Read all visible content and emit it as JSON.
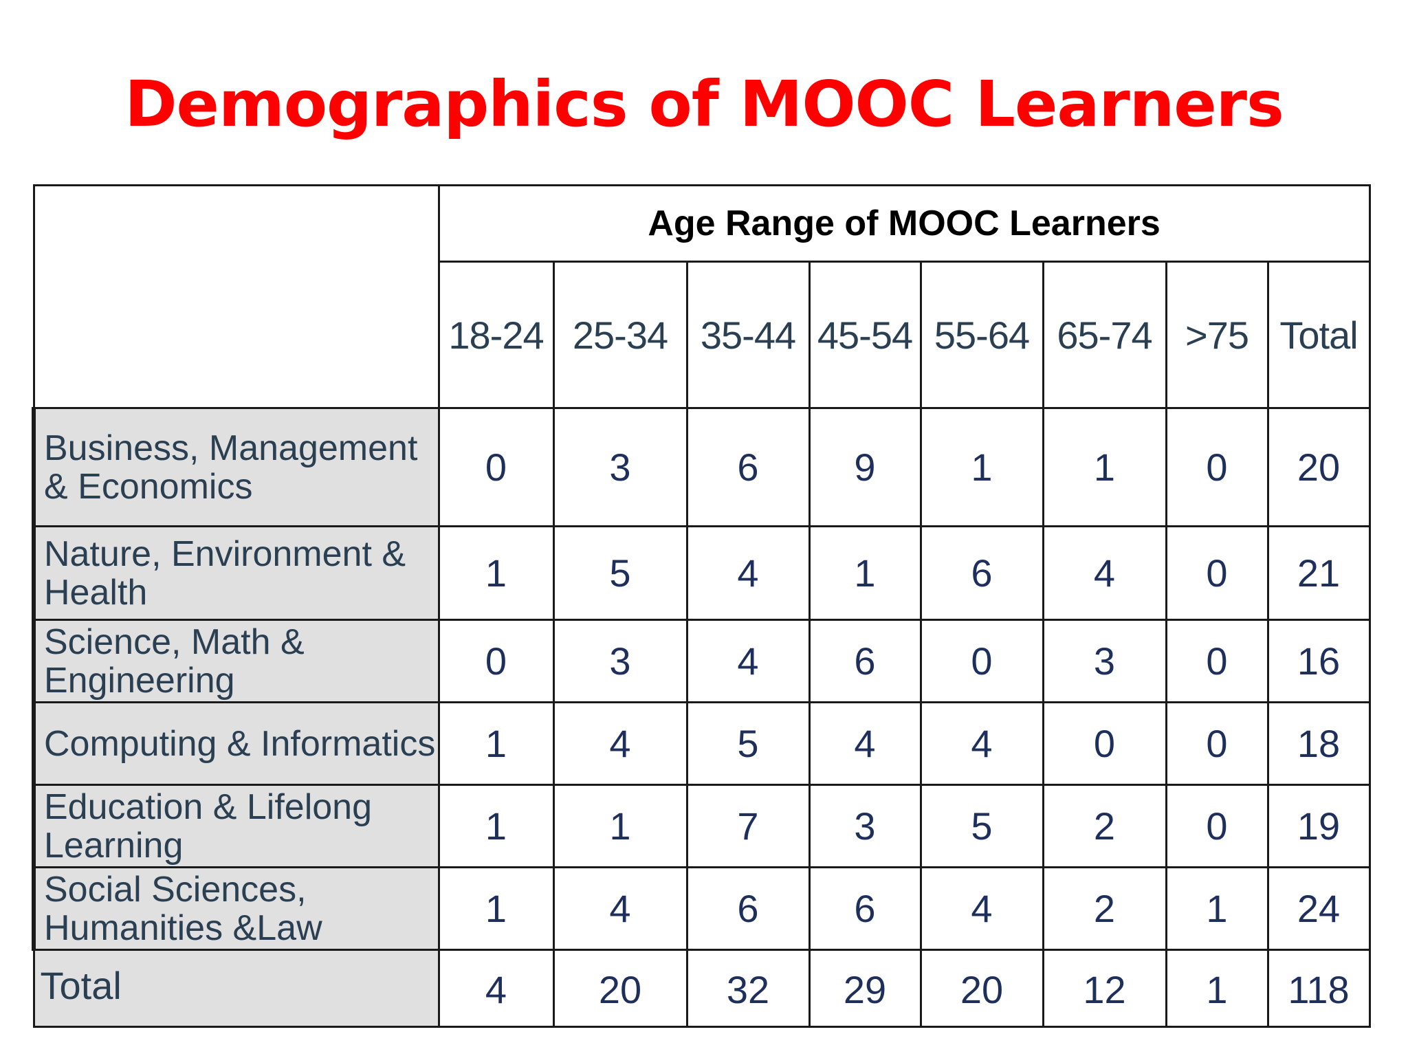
{
  "title": "Demographics of MOOC Learners",
  "title_color": "#ff0000",
  "table": {
    "group_header": "Age Range of MOOC Learners",
    "columns": [
      "18-24",
      "25-34",
      "35-44",
      "45-54",
      "55-64",
      "65-74",
      ">75",
      "Total"
    ],
    "rows": [
      {
        "label": "Business, Management & Economics",
        "values": [
          "0",
          "3",
          "6",
          "9",
          "1",
          "1",
          "0",
          "20"
        ]
      },
      {
        "label": "Nature, Environment & Health",
        "values": [
          "1",
          "5",
          "4",
          "1",
          "6",
          "4",
          "0",
          "21"
        ]
      },
      {
        "label": "Science, Math & Engineering",
        "values": [
          "0",
          "3",
          "4",
          "6",
          "0",
          "3",
          "0",
          "16"
        ]
      },
      {
        "label": "Computing & Informatics",
        "values": [
          "1",
          "4",
          "5",
          "4",
          "4",
          "0",
          "0",
          "18"
        ]
      },
      {
        "label": "Education & Lifelong Learning",
        "values": [
          "1",
          "1",
          "7",
          "3",
          "5",
          "2",
          "0",
          "19"
        ]
      },
      {
        "label": "Social Sciences, Humanities &Law",
        "values": [
          "1",
          "4",
          "6",
          "6",
          "4",
          "2",
          "1",
          "24"
        ]
      }
    ],
    "total_row": {
      "label": "Total",
      "values": [
        "4",
        "20",
        "32",
        "29",
        "20",
        "12",
        "1",
        "118"
      ]
    }
  }
}
